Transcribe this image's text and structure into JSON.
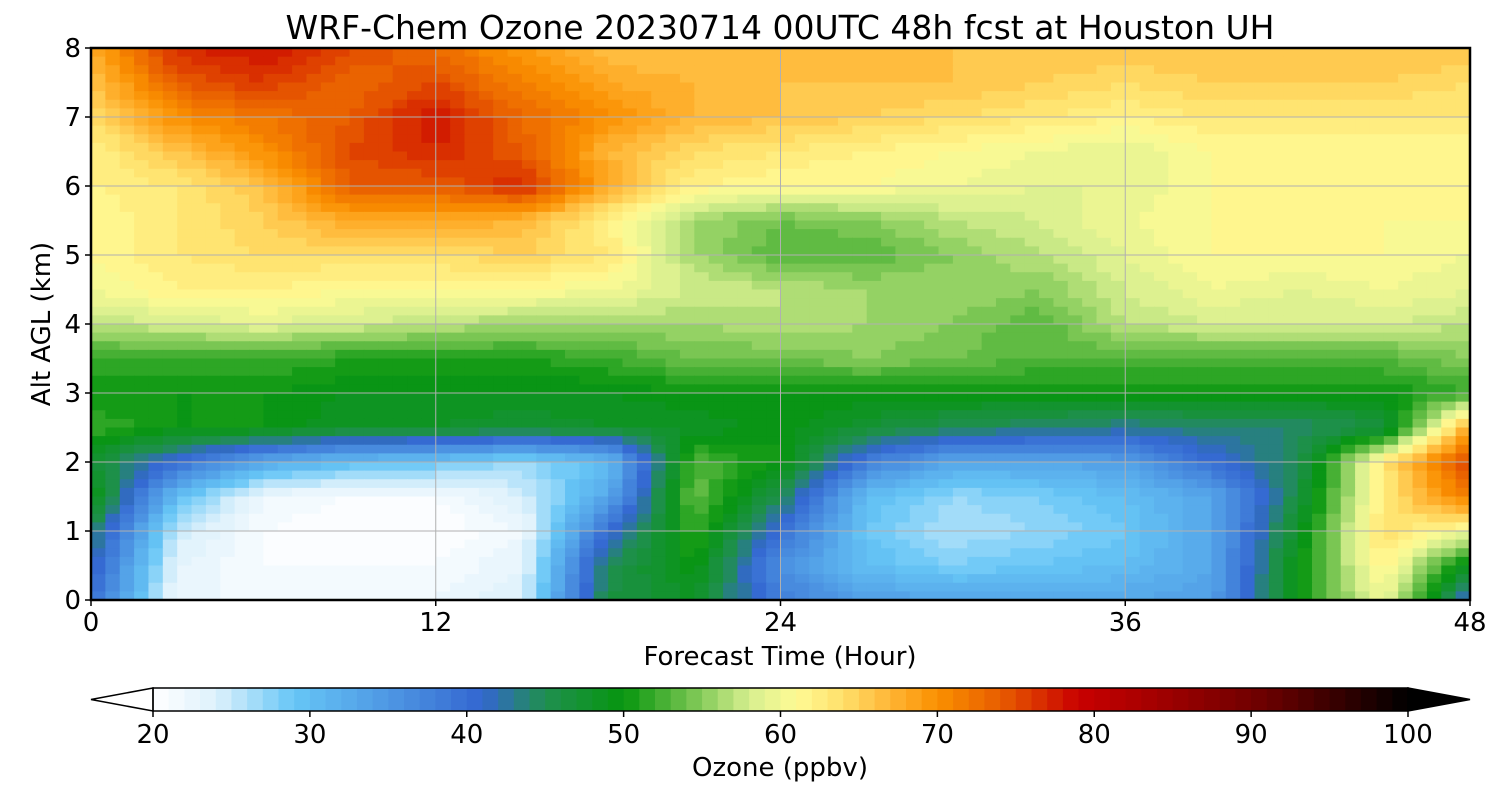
{
  "chart_data": {
    "type": "heatmap",
    "title": "WRF-Chem Ozone  20230714 00UTC 48h fcst at Houston UH",
    "xlabel": "Forecast Time (Hour)",
    "ylabel": "Alt AGL (km)",
    "xlim": [
      0,
      48
    ],
    "ylim": [
      0,
      8
    ],
    "x_ticks": [
      "0",
      "12",
      "24",
      "36",
      "48"
    ],
    "y_ticks": [
      "0",
      "1",
      "2",
      "3",
      "4",
      "5",
      "6",
      "7",
      "8"
    ],
    "grid": true,
    "colorbar": {
      "label": "Ozone  (ppbv)",
      "range": [
        20,
        100
      ],
      "extend": "both",
      "ticks": [
        "20",
        "30",
        "40",
        "50",
        "60",
        "70",
        "80",
        "90",
        "100"
      ]
    },
    "x": [
      0,
      3,
      6,
      9,
      12,
      15,
      18,
      21,
      24,
      27,
      30,
      33,
      36,
      39,
      42,
      45,
      48
    ],
    "y": [
      0,
      0.5,
      1,
      1.5,
      2,
      2.5,
      3,
      3.5,
      4,
      4.5,
      5,
      5.5,
      6,
      6.5,
      7,
      7.5,
      8
    ],
    "z": [
      [
        40,
        22,
        22,
        22,
        22,
        24,
        46,
        48,
        38,
        34,
        33,
        33,
        33,
        34,
        50,
        60,
        40
      ],
      [
        42,
        23,
        21,
        21,
        21,
        23,
        45,
        50,
        36,
        30,
        28,
        29,
        30,
        33,
        50,
        62,
        48
      ],
      [
        45,
        25,
        21,
        20,
        20,
        22,
        40,
        52,
        40,
        29,
        26,
        27,
        29,
        33,
        48,
        64,
        60
      ],
      [
        50,
        30,
        22,
        21,
        21,
        24,
        33,
        54,
        45,
        30,
        27,
        28,
        30,
        33,
        46,
        63,
        72
      ],
      [
        47,
        40,
        33,
        30,
        29,
        27,
        30,
        53,
        50,
        38,
        33,
        33,
        34,
        40,
        45,
        63,
        76
      ],
      [
        52,
        50,
        50,
        48,
        48,
        47,
        48,
        48,
        50,
        47,
        45,
        44,
        43,
        44,
        44,
        46,
        68
      ],
      [
        50,
        50,
        50,
        49,
        49,
        49,
        49,
        50,
        50,
        50,
        50,
        50,
        50,
        50,
        50,
        50,
        52
      ],
      [
        52,
        52,
        52,
        51,
        51,
        51,
        52,
        54,
        54,
        55,
        54,
        53,
        53,
        53,
        53,
        53,
        55
      ],
      [
        57,
        58,
        59,
        58,
        57,
        56,
        56,
        56,
        57,
        56,
        55,
        53,
        57,
        58,
        58,
        58,
        57
      ],
      [
        60,
        62,
        62,
        61,
        61,
        61,
        60,
        58,
        57,
        56,
        56,
        55,
        58,
        60,
        59,
        60,
        59
      ],
      [
        61,
        63,
        64,
        64,
        64,
        65,
        63,
        56,
        53,
        53,
        55,
        57,
        59,
        61,
        61,
        61,
        60
      ],
      [
        61,
        63,
        65,
        68,
        68,
        67,
        62,
        56,
        54,
        55,
        57,
        58,
        60,
        61,
        61,
        61,
        61
      ],
      [
        62,
        63,
        66,
        74,
        74,
        77,
        68,
        62,
        61,
        61,
        60,
        59,
        59,
        61,
        61,
        61,
        61
      ],
      [
        62,
        66,
        70,
        75,
        77,
        74,
        67,
        64,
        63,
        62,
        61,
        60,
        59,
        61,
        61,
        61,
        61
      ],
      [
        64,
        70,
        72,
        74,
        78,
        73,
        70,
        67,
        66,
        65,
        64,
        63,
        62,
        63,
        63,
        63,
        63
      ],
      [
        66,
        74,
        76,
        73,
        75,
        71,
        68,
        67,
        66,
        66,
        66,
        65,
        64,
        65,
        65,
        65,
        64
      ],
      [
        68,
        77,
        78,
        75,
        73,
        69,
        66,
        66,
        66,
        66,
        66,
        66,
        66,
        66,
        66,
        66,
        66
      ]
    ]
  }
}
